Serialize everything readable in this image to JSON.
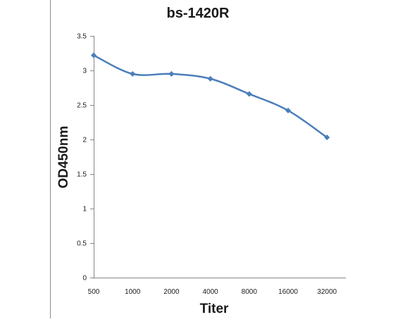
{
  "chart_data": {
    "type": "line",
    "title": "bs-1420R",
    "xlabel": "Titer",
    "ylabel": "OD450nm",
    "categories": [
      "500",
      "1000",
      "2000",
      "4000",
      "8000",
      "16000",
      "32000"
    ],
    "series": [
      {
        "values": [
          3.22,
          2.95,
          2.95,
          2.88,
          2.66,
          2.42,
          2.03
        ],
        "color": "#4a7ebb"
      }
    ],
    "ylim": [
      0,
      3.5
    ],
    "yticks": [
      "0",
      "0.5",
      "1",
      "1.5",
      "2",
      "2.5",
      "3",
      "3.5"
    ],
    "grid": false,
    "legend": false,
    "marker": "diamond",
    "smooth": true,
    "frame_color": "#8c8c8c"
  }
}
